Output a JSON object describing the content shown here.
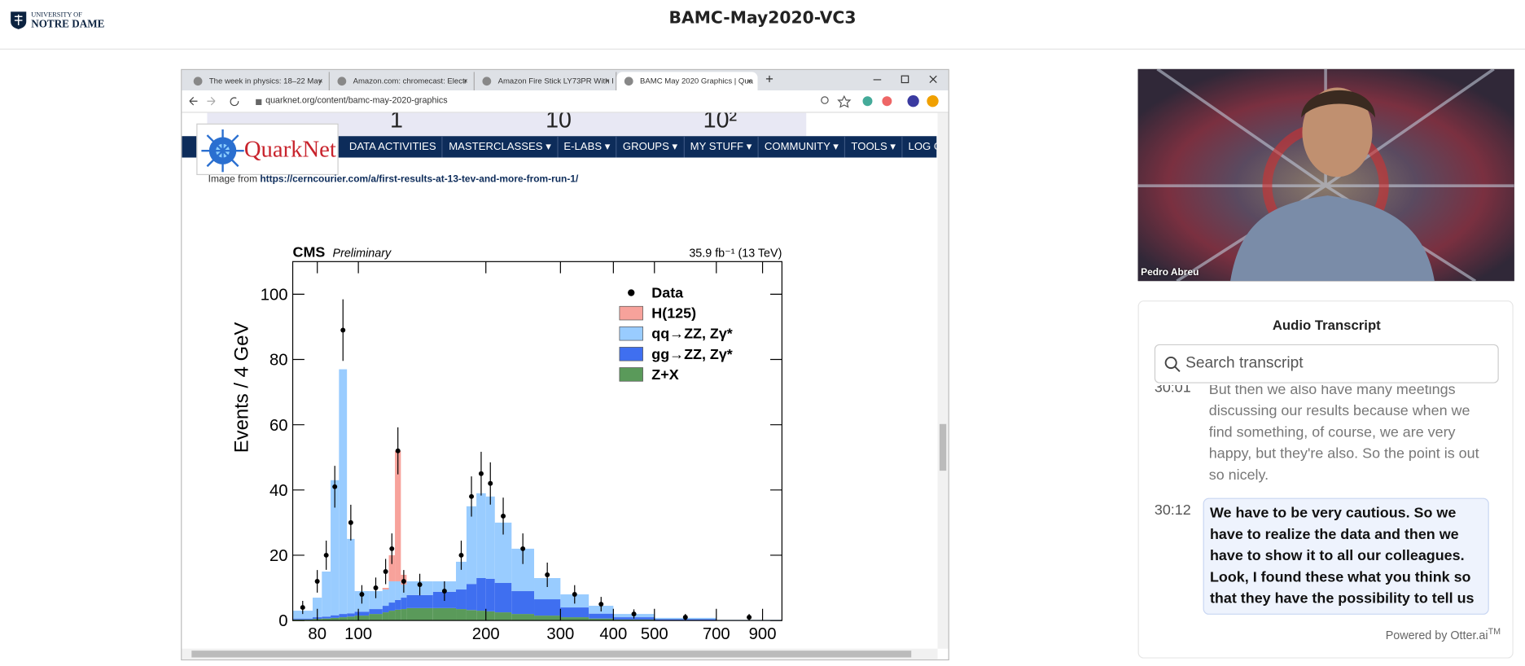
{
  "header": {
    "logo_top": "UNIVERSITY OF",
    "logo_bottom": "NOTRE DAME",
    "title": "BAMC-May2020-VC3"
  },
  "browser": {
    "tabs": [
      {
        "title": "The week in physics: 18–22 May",
        "active": false
      },
      {
        "title": "Amazon.com: chromecast: Electr",
        "active": false
      },
      {
        "title": "Amazon Fire Stick LY73PR With I",
        "active": false
      },
      {
        "title": "BAMC May 2020 Graphics | Qua",
        "active": true
      }
    ],
    "url": "quarknet.org/content/bamc-may-2020-graphics"
  },
  "page": {
    "logo": "QuarkNet",
    "cut_labels": [
      "1",
      "10",
      "10²"
    ],
    "nav": [
      {
        "label": "DATA ACTIVITIES",
        "dropdown": false
      },
      {
        "label": "MASTERCLASSES",
        "dropdown": true
      },
      {
        "label": "E-LABS",
        "dropdown": true
      },
      {
        "label": "GROUPS",
        "dropdown": true
      },
      {
        "label": "MY STUFF",
        "dropdown": true
      },
      {
        "label": "COMMUNITY",
        "dropdown": true
      },
      {
        "label": "TOOLS",
        "dropdown": true
      },
      {
        "label": "LOG OUT",
        "dropdown": false
      }
    ],
    "caption_prefix": "Image from",
    "caption_link": "https://cerncourier.com/a/first-results-at-13-tev-and-more-from-run-1/"
  },
  "chart_data": {
    "type": "histogram",
    "title": "CMS",
    "subtitle": "Preliminary",
    "annotation": "35.9 fb⁻¹ (13 TeV)",
    "y_label": "Events / 4 GeV",
    "log_x": true,
    "xlim": [
      70,
      1000
    ],
    "xticks": [
      80,
      100,
      200,
      300,
      400,
      500,
      700,
      900
    ],
    "ylim": [
      0,
      110
    ],
    "yticks": [
      0,
      20,
      40,
      60,
      80,
      100
    ],
    "legend": "top-right",
    "bins": [
      70,
      78,
      82,
      86,
      90,
      94,
      98,
      106,
      114,
      118,
      122,
      126,
      130,
      150,
      170,
      180,
      190,
      200,
      210,
      230,
      260,
      300,
      350,
      400,
      500,
      700,
      1000
    ],
    "series": [
      {
        "name": "Data",
        "color": "#000000",
        "marker": "circle",
        "values": [
          4,
          12,
          20,
          41,
          89,
          30,
          8,
          10,
          15,
          22,
          52,
          12,
          11,
          9,
          20,
          38,
          45,
          42,
          32,
          22,
          14,
          8,
          5,
          2,
          1,
          1
        ]
      },
      {
        "name": "H(125)",
        "color": "#f7a29b",
        "values": [
          0,
          0,
          0,
          0,
          0,
          0,
          0,
          0,
          0.5,
          8,
          40,
          3,
          0,
          0,
          0,
          0,
          0,
          0,
          0,
          0,
          0,
          0,
          0,
          0,
          0,
          0
        ]
      },
      {
        "name": "qq→ZZ, Zγ*",
        "color": "#99ccff",
        "values": [
          2.4,
          6,
          13.8,
          41.4,
          75,
          22.8,
          6.3,
          5.5,
          5,
          6.5,
          5.7,
          4,
          4.2,
          3.2,
          8.5,
          23.8,
          26,
          25.2,
          18.5,
          13,
          6.5,
          4,
          2.4,
          1,
          0.4,
          0.05
        ]
      },
      {
        "name": "gg→ZZ, Zγ*",
        "color": "#3f6ff0",
        "values": [
          0.3,
          0.5,
          0.6,
          0.8,
          1,
          1,
          1.2,
          1.5,
          2,
          2.5,
          3,
          3.5,
          4,
          5,
          6,
          8,
          10,
          10,
          9,
          7,
          5,
          3,
          1.5,
          0.7,
          0.3,
          0.1
        ]
      },
      {
        "name": "Z+X",
        "color": "#5a9a5a",
        "values": [
          0.3,
          0.5,
          0.6,
          0.8,
          1,
          1.2,
          1.5,
          2,
          2.5,
          3,
          3.3,
          3.5,
          3.8,
          3.8,
          3.5,
          3.2,
          3,
          2.8,
          2.5,
          2,
          1.5,
          1,
          0.6,
          0.3,
          0.1,
          0.05
        ]
      }
    ]
  },
  "video": {
    "name": "Pedro Abreu"
  },
  "transcript": {
    "title": "Audio Transcript",
    "search_placeholder": "Search transcript",
    "entries": [
      {
        "time": "30:01",
        "text": "But then we also have many meetings discussing our results because when we find something, of course, we are very happy, but they're also. So the point is out so nicely.",
        "current": false
      },
      {
        "time": "30:12",
        "text": "We have to be very cautious. So we have to realize the data and then we have to show it to all our colleagues. Look, I found these what you think so that they have the possibility to tell us",
        "current": true
      }
    ],
    "powered_by": "Powered by Otter.ai",
    "trademark": "TM"
  }
}
